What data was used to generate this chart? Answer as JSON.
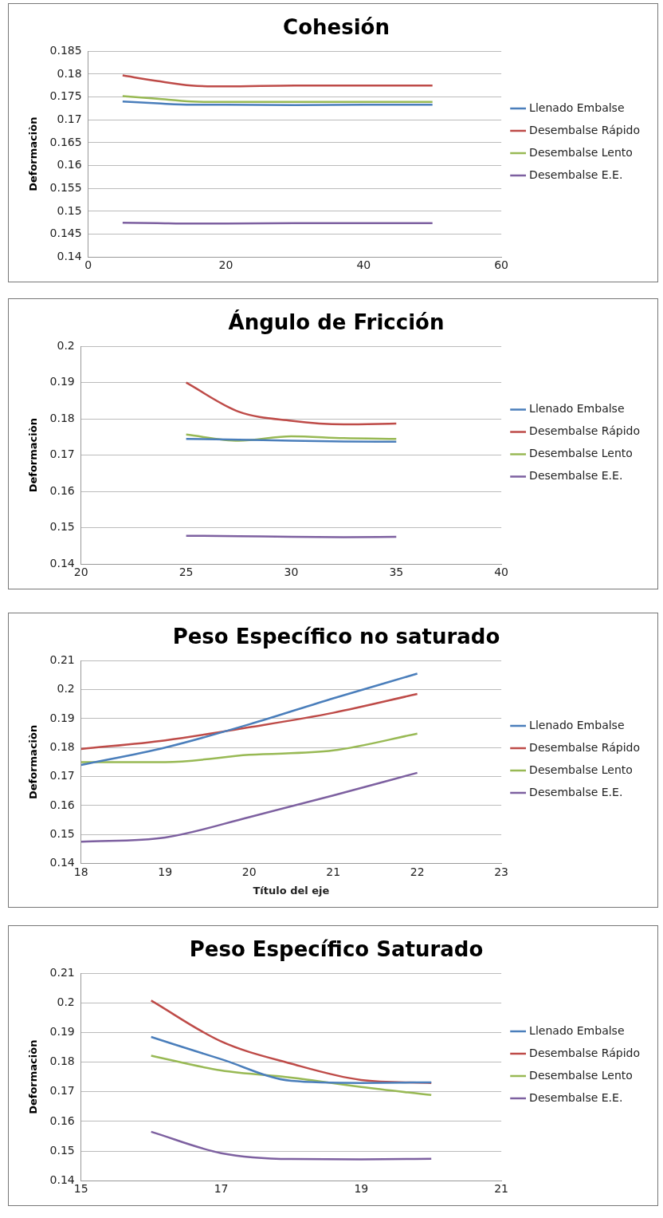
{
  "chart_data": [
    {
      "type": "line",
      "title": "Cohesión",
      "ylabel": "Deformaciòn",
      "xlim": [
        0,
        60
      ],
      "xticks": [
        0,
        20,
        40,
        60
      ],
      "ylim": [
        0.14,
        0.185
      ],
      "yticks": [
        0.14,
        0.145,
        0.15,
        0.155,
        0.16,
        0.165,
        0.17,
        0.175,
        0.18,
        0.185
      ],
      "grid": "y",
      "legend": "right",
      "marker": "none",
      "line_style": "solid",
      "x": [
        5,
        10,
        15,
        20,
        30,
        40,
        50
      ],
      "series": [
        {
          "name": "Llenado Embalse",
          "color": "#4a7ebb",
          "values": [
            0.174,
            0.1736,
            0.1733,
            0.1733,
            0.1732,
            0.1733,
            0.1733
          ]
        },
        {
          "name": "Desembalse Rápido",
          "color": "#be4b48",
          "values": [
            0.1797,
            0.1785,
            0.1775,
            0.1773,
            0.1775,
            0.1775,
            0.1775
          ]
        },
        {
          "name": "Desembalse Lento",
          "color": "#98b954",
          "values": [
            0.1752,
            0.1746,
            0.174,
            0.1739,
            0.1739,
            0.1739,
            0.1739
          ]
        },
        {
          "name": "Desembalse E.E.",
          "color": "#7d60a0",
          "values": [
            0.1475,
            0.1474,
            0.1473,
            0.1473,
            0.1474,
            0.1474,
            0.1474
          ]
        }
      ]
    },
    {
      "type": "line",
      "title": "Ángulo de Fricción",
      "ylabel": "Deformaciòn",
      "xlim": [
        20,
        40
      ],
      "xticks": [
        20,
        25,
        30,
        35,
        40
      ],
      "ylim": [
        0.14,
        0.2
      ],
      "yticks": [
        0.14,
        0.15,
        0.16,
        0.17,
        0.18,
        0.19,
        0.2
      ],
      "grid": "y",
      "legend": "right",
      "marker": "none",
      "line_style": "solid",
      "x": [
        25,
        27.5,
        30,
        32.5,
        35
      ],
      "series": [
        {
          "name": "Llenado Embalse",
          "color": "#4a7ebb",
          "values": [
            0.1745,
            0.1743,
            0.174,
            0.1738,
            0.1737
          ]
        },
        {
          "name": "Desembalse Rápido",
          "color": "#be4b48",
          "values": [
            0.19,
            0.182,
            0.1795,
            0.1785,
            0.1787
          ]
        },
        {
          "name": "Desembalse Lento",
          "color": "#98b954",
          "values": [
            0.1757,
            0.174,
            0.1752,
            0.1747,
            0.1745
          ]
        },
        {
          "name": "Desembalse E.E.",
          "color": "#7d60a0",
          "values": [
            0.1478,
            0.1477,
            0.1475,
            0.1474,
            0.1475
          ]
        }
      ]
    },
    {
      "type": "line",
      "title": "Peso Específico no saturado",
      "ylabel": "Deformaciòn",
      "xlabel": "Título del eje",
      "xlim": [
        18,
        23
      ],
      "xticks": [
        18,
        19,
        20,
        21,
        22,
        23
      ],
      "ylim": [
        0.14,
        0.21
      ],
      "yticks": [
        0.14,
        0.15,
        0.16,
        0.17,
        0.18,
        0.19,
        0.2,
        0.21
      ],
      "grid": "y",
      "legend": "right",
      "marker": "none",
      "line_style": "solid",
      "x": [
        18,
        19,
        20,
        21,
        22
      ],
      "series": [
        {
          "name": "Llenado Embalse",
          "color": "#4a7ebb",
          "values": [
            0.174,
            0.18,
            0.188,
            0.197,
            0.2055
          ]
        },
        {
          "name": "Desembalse Rápido",
          "color": "#be4b48",
          "values": [
            0.1795,
            0.1825,
            0.187,
            0.192,
            0.1985
          ]
        },
        {
          "name": "Desembalse Lento",
          "color": "#98b954",
          "values": [
            0.175,
            0.175,
            0.1775,
            0.179,
            0.1848
          ]
        },
        {
          "name": "Desembalse E.E.",
          "color": "#7d60a0",
          "values": [
            0.1475,
            0.149,
            0.156,
            0.1635,
            0.1713
          ]
        }
      ]
    },
    {
      "type": "line",
      "title": "Peso Específico Saturado",
      "ylabel": "Deformaciòn",
      "xlim": [
        15,
        21
      ],
      "xticks": [
        15,
        17,
        19,
        21
      ],
      "ylim": [
        0.14,
        0.21
      ],
      "yticks": [
        0.14,
        0.15,
        0.16,
        0.17,
        0.18,
        0.19,
        0.2,
        0.21
      ],
      "grid": "y",
      "legend": "right",
      "marker": "none",
      "line_style": "solid",
      "x": [
        16,
        17,
        18,
        19,
        20
      ],
      "series": [
        {
          "name": "Llenado Embalse",
          "color": "#4a7ebb",
          "values": [
            0.1885,
            0.181,
            0.1737,
            0.173,
            0.1732
          ]
        },
        {
          "name": "Desembalse Rápido",
          "color": "#be4b48",
          "values": [
            0.2008,
            0.187,
            0.1795,
            0.174,
            0.173
          ]
        },
        {
          "name": "Desembalse Lento",
          "color": "#98b954",
          "values": [
            0.1822,
            0.1772,
            0.1748,
            0.1716,
            0.1689
          ]
        },
        {
          "name": "Desembalse E.E.",
          "color": "#7d60a0",
          "values": [
            0.1565,
            0.1493,
            0.1473,
            0.1472,
            0.1474
          ]
        }
      ]
    }
  ]
}
